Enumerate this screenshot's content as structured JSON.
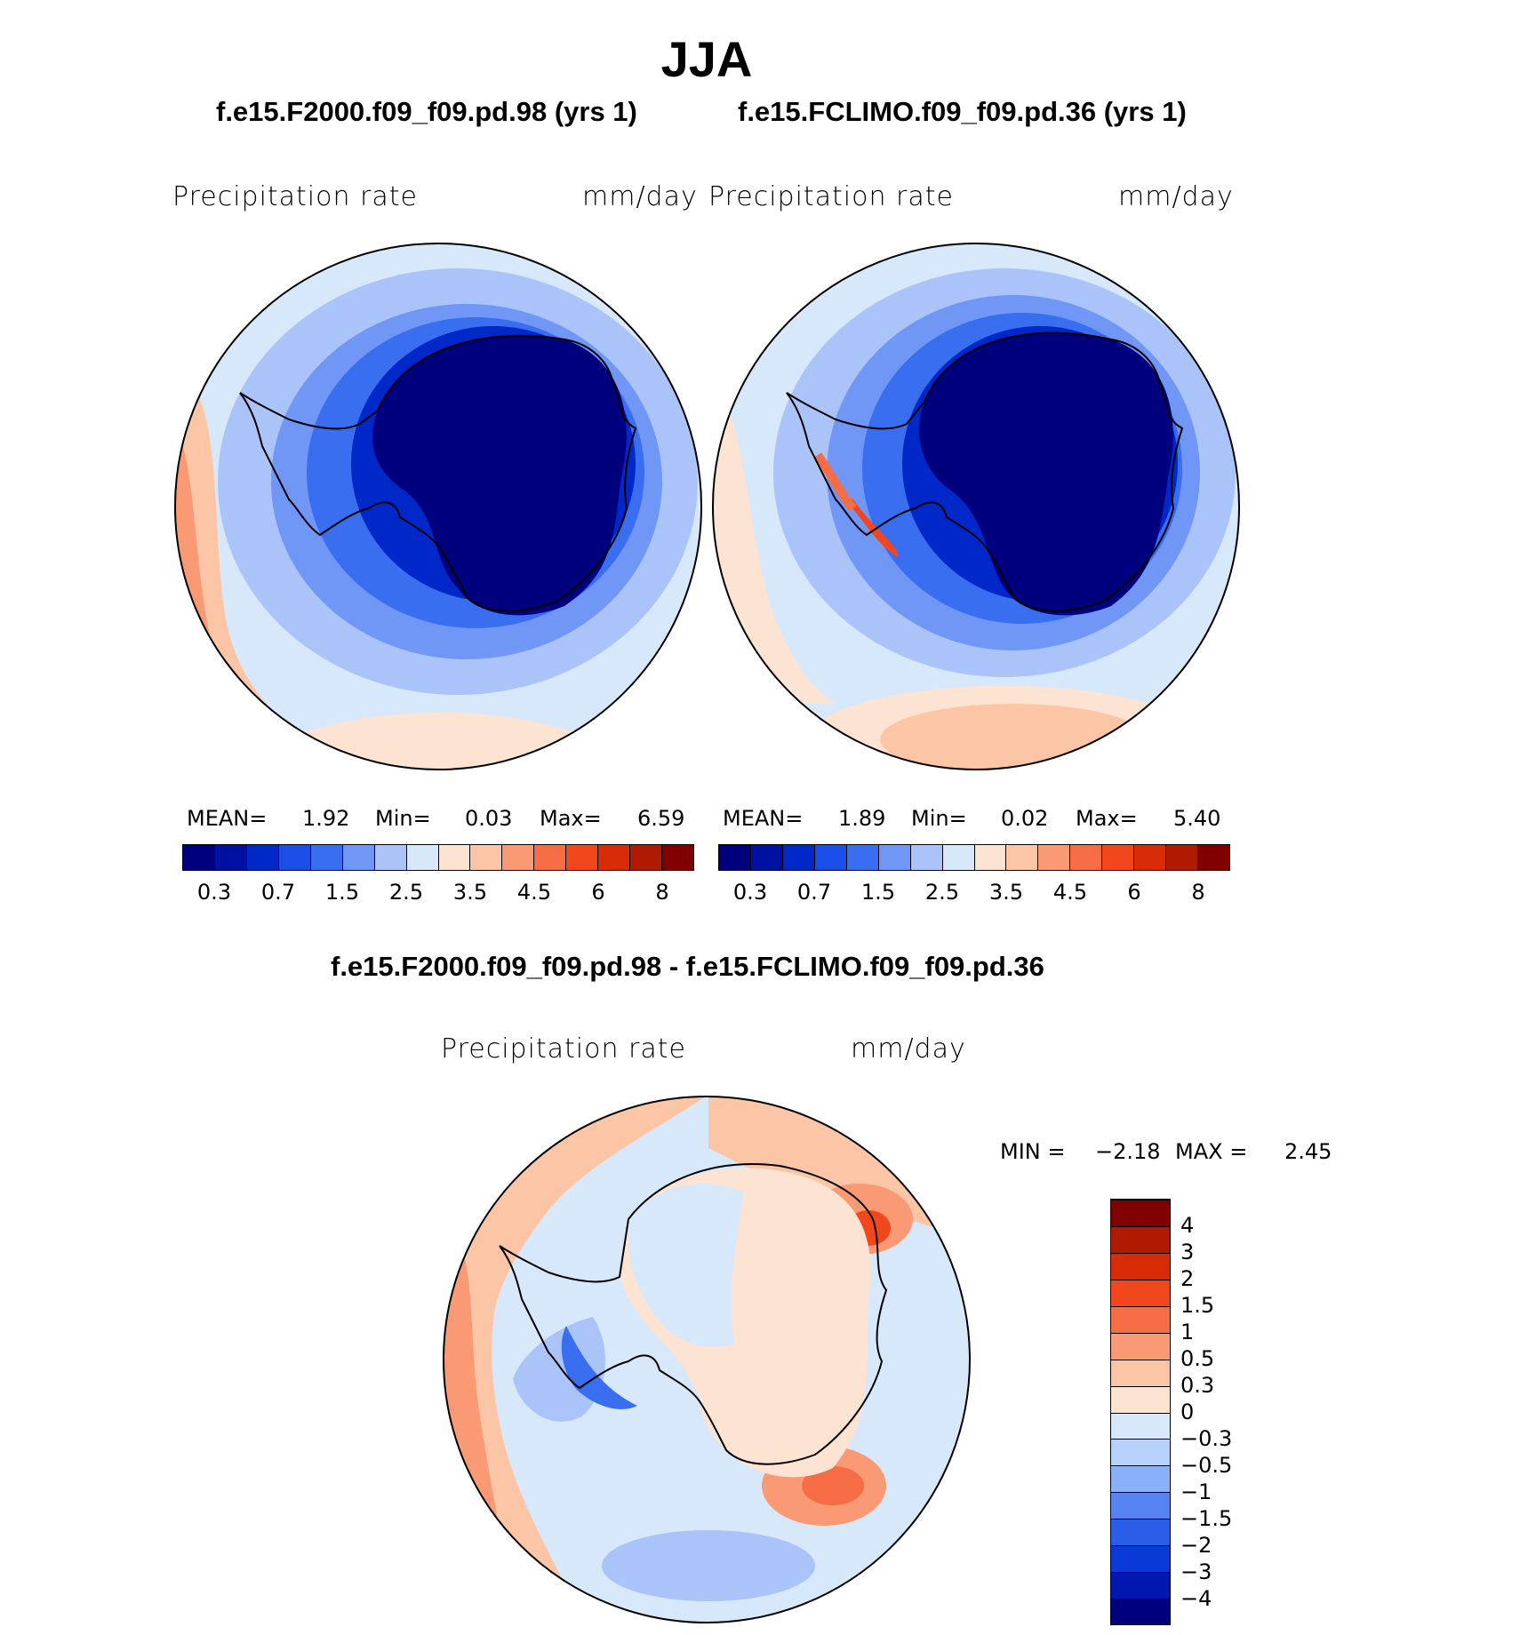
{
  "title": "JJA",
  "panels": [
    {
      "run_title": "f.e15.F2000.f09_f09.pd.98 (yrs 1)",
      "variable": "Precipitation  rate",
      "units": "mm/day",
      "stats": {
        "mean_label": "MEAN=",
        "mean": "1.92",
        "min_label": "Min=",
        "min": "0.03",
        "max_label": "Max=",
        "max": "6.59"
      }
    },
    {
      "run_title": "f.e15.FCLIMO.f09_f09.pd.36 (yrs 1)",
      "variable": "Precipitation  rate",
      "units": "mm/day",
      "stats": {
        "mean_label": "MEAN=",
        "mean": "1.89",
        "min_label": "Min=",
        "min": "0.02",
        "max_label": "Max=",
        "max": "5.40"
      }
    }
  ],
  "abs_colorbar": {
    "colors": [
      "#00007f",
      "#0010a0",
      "#0028c8",
      "#1a4ee6",
      "#3a6ef0",
      "#7097f5",
      "#aac4fa",
      "#d8e8fb",
      "#fde4d2",
      "#fcc5a6",
      "#f99a74",
      "#f66d45",
      "#f2461d",
      "#d82c08",
      "#b01a00",
      "#800000"
    ],
    "tick_labels": [
      "0.3",
      "0.7",
      "1.5",
      "2.5",
      "3.5",
      "4.5",
      "6",
      "8"
    ]
  },
  "diff_panel": {
    "run_title": "f.e15.F2000.f09_f09.pd.98 - f.e15.FCLIMO.f09_f09.pd.36",
    "variable": "Precipitation  rate",
    "units": "mm/day",
    "stats": {
      "min_label": "MIN =",
      "min": "−2.18",
      "max_label": "MAX =",
      "max": "2.45"
    }
  },
  "diff_colorbar": {
    "colors": [
      "#00007f",
      "#0018b0",
      "#0a3ad6",
      "#2a5ee8",
      "#5583f2",
      "#8ab0f8",
      "#b9d2fb",
      "#d8e8fb",
      "#fde4d2",
      "#fcc5a6",
      "#f99a74",
      "#f66d45",
      "#f2461d",
      "#d82c08",
      "#b01a00",
      "#800000"
    ],
    "tick_labels": [
      "−4",
      "−3",
      "−2",
      "−1.5",
      "−1",
      "−0.5",
      "−0.3",
      "0",
      "0.3",
      "0.5",
      "1",
      "1.5",
      "2",
      "3",
      "4"
    ]
  },
  "map_palette": {
    "ocean_blue": "#aac4fa",
    "ocean_light": "#d8e8fb",
    "mid_blue": "#3a6ef0",
    "deep_blue": "#00007f",
    "dark_blue": "#0028c8",
    "warm_light": "#fde4d2",
    "warm_mid": "#fcc5a6",
    "warm_strong": "#f99a74",
    "warm_red": "#f2461d"
  }
}
